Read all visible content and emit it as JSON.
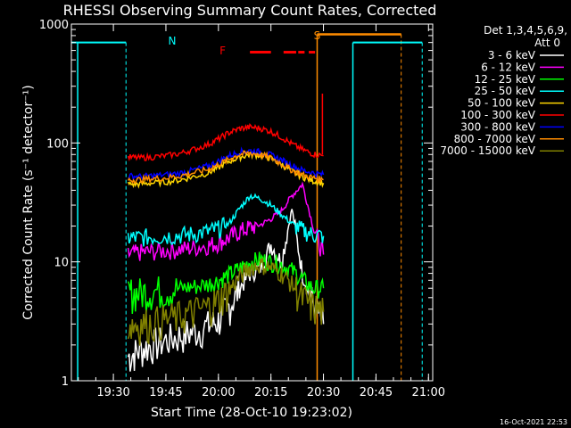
{
  "chart_data": {
    "type": "line",
    "title": "RHESSI Observing Summary Count Rates, Corrected",
    "xlabel": "Start Time (28-Oct-10 19:23:02)",
    "ylabel": "Corrected Count Rate (s⁻¹ detector⁻¹)",
    "y_log": true,
    "ylim": [
      1,
      1000
    ],
    "xlim_min": [
      19.3,
      21.02
    ],
    "xticks_min": [
      19.5,
      19.75,
      20.0,
      20.25,
      20.5,
      20.75,
      21.0
    ],
    "xtick_labels": [
      "19:30",
      "19:45",
      "20:00",
      "20:15",
      "20:30",
      "20:45",
      "21:00"
    ],
    "yticks": [
      1,
      10,
      100,
      1000
    ],
    "ytick_labels": [
      "1",
      "10",
      "100",
      "1000"
    ],
    "legend_header": [
      "Det 1,3,4,5,6,9,",
      "Att 0"
    ],
    "legend_placement": "right",
    "series": [
      {
        "name": "3 - 6 keV",
        "color": "#ffffff",
        "x": [
          19.57,
          19.62,
          19.68,
          19.75,
          19.82,
          19.88,
          19.95,
          20.0,
          20.05,
          20.1,
          20.15,
          20.2,
          20.25,
          20.3,
          20.35,
          20.4,
          20.45,
          20.5
        ],
        "y": [
          1.6,
          1.8,
          2.0,
          2.2,
          2.4,
          2.6,
          2.9,
          3.2,
          4.2,
          6.0,
          8.0,
          9.0,
          14,
          10,
          28,
          8,
          4.5,
          3.0
        ]
      },
      {
        "name": "6 - 12 keV",
        "color": "#ff00ff",
        "x": [
          19.57,
          19.62,
          19.68,
          19.75,
          19.82,
          19.88,
          19.95,
          20.0,
          20.05,
          20.1,
          20.15,
          20.2,
          20.25,
          20.3,
          20.35,
          20.4,
          20.45,
          20.5
        ],
        "y": [
          11.5,
          12.0,
          12.2,
          12.5,
          12.8,
          13.2,
          13.8,
          14.5,
          16.0,
          18.0,
          19.5,
          20.5,
          23,
          27,
          36,
          45,
          20,
          11.5
        ]
      },
      {
        "name": "12 - 25 keV",
        "color": "#00ff00",
        "x": [
          19.57,
          19.62,
          19.68,
          19.75,
          19.82,
          19.88,
          19.95,
          20.0,
          20.05,
          20.1,
          20.15,
          20.2,
          20.25,
          20.3,
          20.35,
          20.4,
          20.45,
          20.5
        ],
        "y": [
          5.5,
          5.5,
          5.7,
          5.8,
          6.0,
          6.2,
          6.5,
          7.0,
          7.8,
          8.8,
          10.0,
          10.5,
          10.0,
          9.5,
          8.5,
          7.2,
          6.0,
          6.0
        ]
      },
      {
        "name": "25 - 50 keV",
        "color": "#00ffff",
        "x": [
          19.57,
          19.62,
          19.68,
          19.75,
          19.82,
          19.88,
          19.95,
          20.0,
          20.05,
          20.1,
          20.15,
          20.2,
          20.25,
          20.3,
          20.35,
          20.4,
          20.45,
          20.5
        ],
        "y": [
          16,
          16,
          16.3,
          16.5,
          16.8,
          17.2,
          18.0,
          19.0,
          21,
          28,
          36,
          34,
          30,
          25,
          21,
          18.5,
          17,
          16.5
        ]
      },
      {
        "name": "50 - 100 keV",
        "color": "#ffd700",
        "x": [
          19.57,
          19.62,
          19.68,
          19.75,
          19.82,
          19.88,
          19.95,
          20.0,
          20.05,
          20.1,
          20.15,
          20.2,
          20.25,
          20.3,
          20.35,
          20.4,
          20.45,
          20.5
        ],
        "y": [
          45,
          45,
          46,
          47,
          49,
          52,
          56,
          62,
          70,
          76,
          80,
          79,
          74,
          66,
          58,
          52,
          48,
          46
        ]
      },
      {
        "name": "100 - 300 keV",
        "color": "#ff0000",
        "x": [
          19.57,
          19.62,
          19.68,
          19.75,
          19.82,
          19.88,
          19.95,
          20.0,
          20.05,
          20.1,
          20.15,
          20.2,
          20.25,
          20.3,
          20.35,
          20.4,
          20.45,
          20.5
        ],
        "y": [
          76,
          75,
          76,
          78,
          82,
          88,
          97,
          108,
          122,
          132,
          136,
          133,
          125,
          112,
          98,
          88,
          81,
          78
        ]
      },
      {
        "name": "300 - 800 keV",
        "color": "#0000ff",
        "x": [
          19.57,
          19.62,
          19.68,
          19.75,
          19.82,
          19.88,
          19.95,
          20.0,
          20.05,
          20.1,
          20.15,
          20.2,
          20.25,
          20.3,
          20.35,
          20.4,
          20.45,
          20.5
        ],
        "y": [
          53,
          52,
          53,
          54,
          56,
          59,
          64,
          70,
          78,
          84,
          86,
          84,
          79,
          72,
          65,
          59,
          56,
          54
        ]
      },
      {
        "name": "800 - 7000 keV",
        "color": "#ff8c00",
        "x": [
          19.57,
          19.62,
          19.68,
          19.75,
          19.82,
          19.88,
          19.95,
          20.0,
          20.05,
          20.1,
          20.15,
          20.2,
          20.25,
          20.3,
          20.35,
          20.4,
          20.45,
          20.5
        ],
        "y": [
          49,
          49,
          50,
          51,
          53,
          56,
          60,
          66,
          73,
          80,
          82,
          80,
          75,
          67,
          59,
          54,
          51,
          49
        ]
      },
      {
        "name": "7000 - 15000 keV",
        "color": "#808000",
        "x": [
          19.57,
          19.62,
          19.68,
          19.75,
          19.82,
          19.88,
          19.95,
          20.0,
          20.05,
          20.1,
          20.15,
          20.2,
          20.25,
          20.3,
          20.35,
          20.4,
          20.45,
          20.5
        ],
        "y": [
          3.0,
          3.0,
          3.1,
          3.3,
          3.5,
          3.8,
          4.2,
          4.8,
          5.8,
          7.5,
          9.0,
          9.5,
          9.0,
          8.0,
          6.5,
          5.0,
          4.2,
          3.8
        ]
      }
    ],
    "markers": [
      {
        "label": "N",
        "color": "#00ffff",
        "x": 19.78
      },
      {
        "label": "F",
        "color": "#ff0000",
        "x": 20.02
      },
      {
        "label": "S",
        "color": "#ff8c00",
        "x": 20.47
      }
    ],
    "footer_date": "16-Oct-2021 22:53"
  }
}
